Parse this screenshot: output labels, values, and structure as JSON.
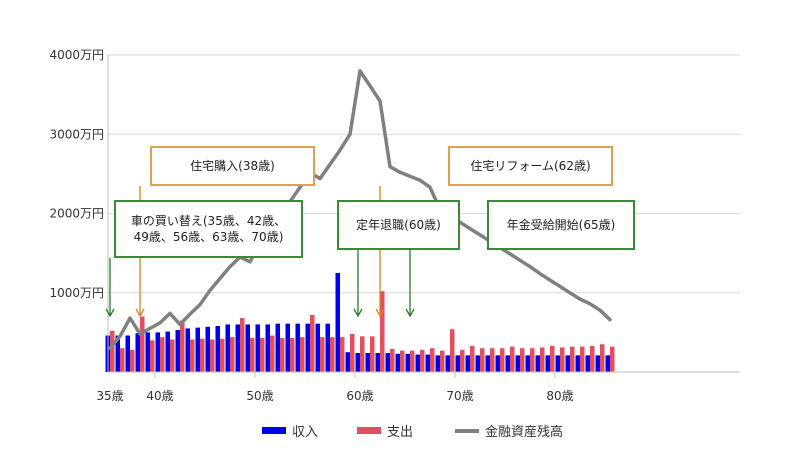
{
  "chart_data": {
    "type": "bar",
    "title": "",
    "xlabel": "",
    "ylabel": "",
    "ylim": [
      0,
      4000
    ],
    "xlim": [
      35,
      85
    ],
    "grid": "horizontal",
    "legend_position": "bottom",
    "y_ticks": [
      "4000万円",
      "3000万円",
      "2000万円",
      "1000万円"
    ],
    "x_ticks": [
      "35歳",
      "40歳",
      "50歳",
      "60歳",
      "70歳",
      "80歳"
    ],
    "ages": [
      35,
      36,
      37,
      38,
      39,
      40,
      41,
      42,
      43,
      44,
      45,
      46,
      47,
      48,
      49,
      50,
      51,
      52,
      53,
      54,
      55,
      56,
      57,
      58,
      59,
      60,
      61,
      62,
      63,
      64,
      65,
      66,
      67,
      68,
      69,
      70,
      71,
      72,
      73,
      74,
      75,
      76,
      77,
      78,
      79,
      80,
      81,
      82,
      83,
      84,
      85
    ],
    "series": [
      {
        "name": "収入",
        "type": "bar",
        "color": "#0000ee",
        "values": [
          460,
          460,
          460,
          490,
          500,
          500,
          510,
          530,
          550,
          560,
          570,
          580,
          600,
          600,
          600,
          600,
          600,
          610,
          610,
          610,
          610,
          610,
          610,
          1250,
          250,
          240,
          240,
          240,
          240,
          230,
          230,
          220,
          220,
          210,
          210,
          210,
          210,
          210,
          210,
          210,
          210,
          210,
          210,
          210,
          210,
          210,
          210,
          210,
          210,
          210,
          210
        ]
      },
      {
        "name": "支出",
        "type": "bar",
        "color": "#e05060",
        "values": [
          520,
          300,
          280,
          700,
          400,
          440,
          410,
          650,
          410,
          420,
          410,
          420,
          440,
          680,
          430,
          430,
          460,
          430,
          430,
          440,
          720,
          440,
          440,
          440,
          480,
          450,
          450,
          1020,
          290,
          270,
          270,
          280,
          300,
          270,
          540,
          280,
          330,
          300,
          300,
          300,
          320,
          300,
          300,
          310,
          330,
          310,
          320,
          320,
          330,
          350,
          320
        ]
      },
      {
        "name": "金融資産残高",
        "type": "line",
        "color": "#808080",
        "values": [
          300,
          450,
          680,
          480,
          550,
          620,
          740,
          600,
          730,
          850,
          1030,
          1180,
          1330,
          1450,
          1390,
          1630,
          1810,
          2000,
          2150,
          2330,
          2520,
          2440,
          2620,
          2800,
          3000,
          3800,
          3610,
          3420,
          2590,
          2520,
          2470,
          2420,
          2330,
          2050,
          1970,
          1890,
          1810,
          1730,
          1650,
          1570,
          1490,
          1410,
          1330,
          1240,
          1160,
          1080,
          1000,
          920,
          860,
          780,
          660
        ]
      }
    ],
    "annotations": [
      {
        "lines": [
          "住宅購入(38歳)"
        ],
        "border_color": "#e0a050",
        "arrow_color": "#e08020",
        "age": 38
      },
      {
        "lines": [
          "住宅リフォーム(62歳)"
        ],
        "border_color": "#e0a050",
        "arrow_color": "#e08020",
        "age": 62
      },
      {
        "lines": [
          "車の買い替え(35歳、42歳、",
          "49歳、56歳、63歳、70歳)"
        ],
        "border_color": "#3a8a3a",
        "arrow_color": "#2a7a2a",
        "age": 35
      },
      {
        "lines": [
          "定年退職(60歳)"
        ],
        "border_color": "#3a8a3a",
        "arrow_color": "#2a7a2a",
        "age": 60
      },
      {
        "lines": [
          "年金受給開始(65歳)"
        ],
        "border_color": "#3a8a3a",
        "arrow_color": "#2a7a2a",
        "age": 65
      }
    ]
  }
}
